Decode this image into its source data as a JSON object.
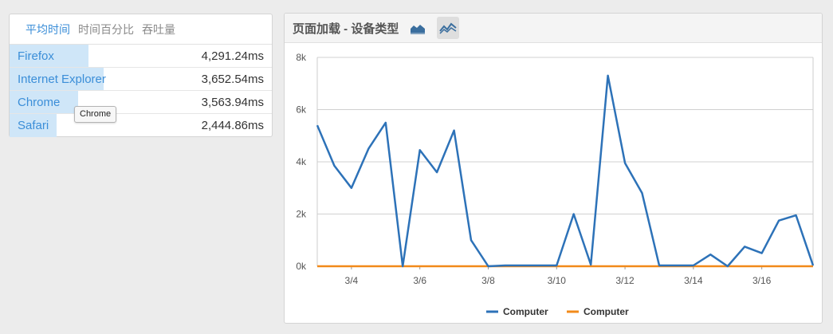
{
  "tabs": [
    {
      "label": "平均时间",
      "active": true
    },
    {
      "label": "时间百分比",
      "active": false
    },
    {
      "label": "吞吐量",
      "active": false
    }
  ],
  "browsers": [
    {
      "name": "Firefox",
      "value": "4,291.24ms",
      "share": 0.3
    },
    {
      "name": "Internet Explorer",
      "value": "3,652.54ms",
      "share": 0.36
    },
    {
      "name": "Chrome",
      "value": "3,563.94ms",
      "share": 0.26
    },
    {
      "name": "Safari",
      "value": "2,444.86ms",
      "share": 0.18
    }
  ],
  "tooltip": {
    "text": "Chrome"
  },
  "panel": {
    "title": "页面加载 - 设备类型",
    "area_icon": "area-chart-icon",
    "line_icon": "line-chart-icon"
  },
  "colors": {
    "accent": "#3b8ed8",
    "series1": "#2d72b8",
    "series2": "#f28a1a"
  },
  "chart_data": {
    "type": "line",
    "x": [
      "3/3",
      "3/3.5",
      "3/4",
      "3/4.5",
      "3/5",
      "3/5.5",
      "3/6",
      "3/6.5",
      "3/7",
      "3/7.5",
      "3/8",
      "3/8.5",
      "3/9",
      "3/9.5",
      "3/10",
      "3/10.5",
      "3/11",
      "3/11.5",
      "3/12",
      "3/12.5",
      "3/13",
      "3/13.5",
      "3/14",
      "3/14.5",
      "3/15",
      "3/15.5",
      "3/16",
      "3/16.5",
      "3/17",
      "3/17.5"
    ],
    "xticks": [
      "3/4",
      "3/6",
      "3/8",
      "3/10",
      "3/12",
      "3/14",
      "3/16"
    ],
    "ylim": [
      0,
      8000
    ],
    "yticks": [
      "0k",
      "2k",
      "4k",
      "6k",
      "8k"
    ],
    "grid": true,
    "legend": "bottom-center",
    "series": [
      {
        "name": "Computer",
        "color": "#2d72b8",
        "values": [
          5400,
          3850,
          3000,
          4500,
          5500,
          0,
          4450,
          3600,
          5200,
          1000,
          0,
          30,
          30,
          30,
          30,
          2000,
          60,
          7300,
          3950,
          2800,
          30,
          30,
          30,
          450,
          0,
          750,
          500,
          1750,
          1950,
          30
        ]
      },
      {
        "name": "Computer",
        "color": "#f28a1a",
        "values": [
          0,
          0,
          0,
          0,
          0,
          0,
          0,
          0,
          0,
          0,
          0,
          0,
          0,
          0,
          0,
          0,
          0,
          0,
          0,
          0,
          0,
          0,
          0,
          0,
          0,
          0,
          0,
          0,
          0,
          0
        ]
      }
    ]
  }
}
